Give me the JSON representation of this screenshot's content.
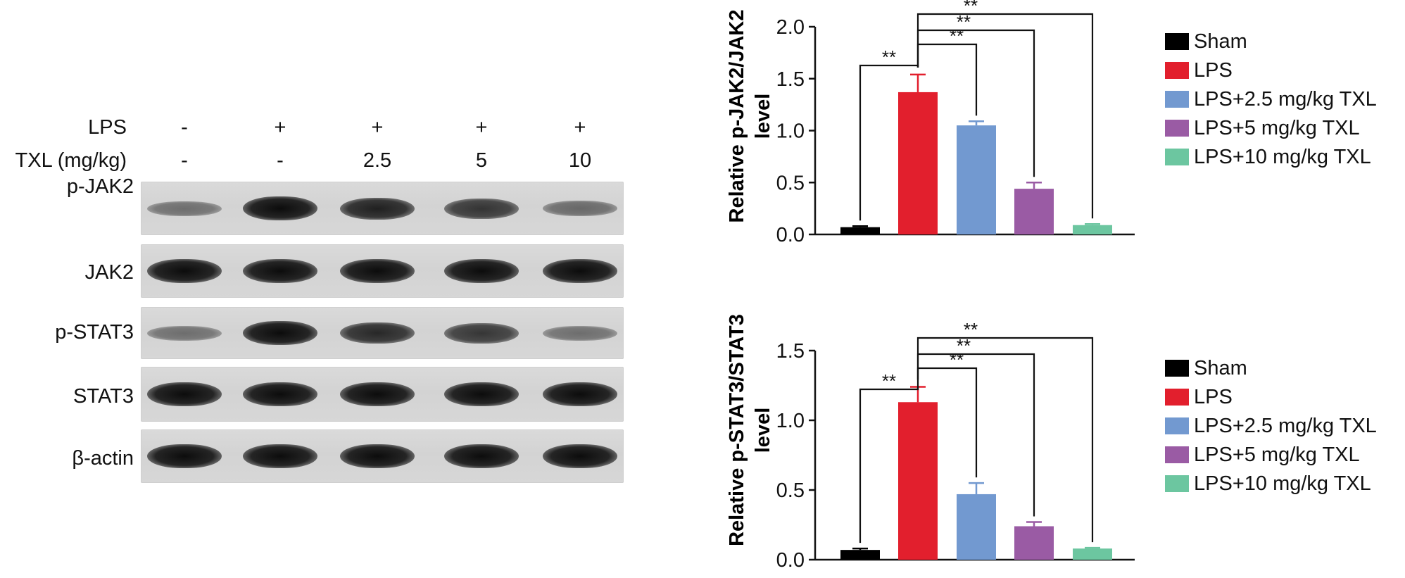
{
  "blot": {
    "header_rows": [
      {
        "label": "LPS",
        "values": [
          "-",
          "+",
          "+",
          "+",
          "+"
        ]
      },
      {
        "label": "TXL (mg/kg)",
        "values": [
          "-",
          "-",
          "2.5",
          "5",
          "10"
        ]
      }
    ],
    "bands": [
      {
        "label": "p-JAK2",
        "intensity": [
          0.3,
          1.0,
          0.85,
          0.72,
          0.35
        ]
      },
      {
        "label": "JAK2",
        "intensity": [
          1.0,
          1.0,
          1.0,
          1.0,
          1.0
        ]
      },
      {
        "label": "p-STAT3",
        "intensity": [
          0.3,
          1.0,
          0.8,
          0.7,
          0.3
        ]
      },
      {
        "label": "STAT3",
        "intensity": [
          1.0,
          1.0,
          1.0,
          1.0,
          1.0
        ]
      },
      {
        "label": "β-actin",
        "intensity": [
          1.0,
          1.0,
          1.0,
          1.0,
          1.0
        ]
      }
    ]
  },
  "legend": [
    {
      "label": "Sham",
      "color": "#000000"
    },
    {
      "label": "LPS",
      "color": "#e21f2d"
    },
    {
      "label": "LPS+2.5 mg/kg TXL",
      "color": "#7299d0"
    },
    {
      "label": "LPS+5 mg/kg TXL",
      "color": "#9a5ba4"
    },
    {
      "label": "LPS+10 mg/kg TXL",
      "color": "#6cc6a0"
    }
  ],
  "chart_data": [
    {
      "type": "bar",
      "title": "",
      "xlabel": "",
      "ylabel_line1": "Relative p-JAK2/JAK2",
      "ylabel_line2": "level",
      "ylim": [
        0,
        2.0
      ],
      "yticks": [
        "0.0",
        "0.5",
        "1.0",
        "1.5",
        "2.0"
      ],
      "categories": [
        "Sham",
        "LPS",
        "LPS+2.5 mg/kg TXL",
        "LPS+5 mg/kg TXL",
        "LPS+10 mg/kg TXL"
      ],
      "values": [
        0.07,
        1.37,
        1.05,
        0.44,
        0.09
      ],
      "errors": [
        0.01,
        0.17,
        0.04,
        0.06,
        0.01
      ],
      "significance": [
        {
          "from": 0,
          "to": 1,
          "label": "**"
        },
        {
          "from": 1,
          "to": 2,
          "label": "**"
        },
        {
          "from": 1,
          "to": 3,
          "label": "**"
        },
        {
          "from": 1,
          "to": 4,
          "label": "**"
        }
      ],
      "legend": "right"
    },
    {
      "type": "bar",
      "title": "",
      "xlabel": "",
      "ylabel_line1": "Relative p-STAT3/STAT3",
      "ylabel_line2": "level",
      "ylim": [
        0,
        1.5
      ],
      "yticks": [
        "0.0",
        "0.5",
        "1.0",
        "1.5"
      ],
      "categories": [
        "Sham",
        "LPS",
        "LPS+2.5 mg/kg TXL",
        "LPS+5 mg/kg TXL",
        "LPS+10 mg/kg TXL"
      ],
      "values": [
        0.07,
        1.13,
        0.47,
        0.24,
        0.08
      ],
      "errors": [
        0.01,
        0.11,
        0.08,
        0.03,
        0.005
      ],
      "significance": [
        {
          "from": 0,
          "to": 1,
          "label": "**"
        },
        {
          "from": 1,
          "to": 2,
          "label": "**"
        },
        {
          "from": 1,
          "to": 3,
          "label": "**"
        },
        {
          "from": 1,
          "to": 4,
          "label": "**"
        }
      ],
      "legend": "right"
    }
  ]
}
